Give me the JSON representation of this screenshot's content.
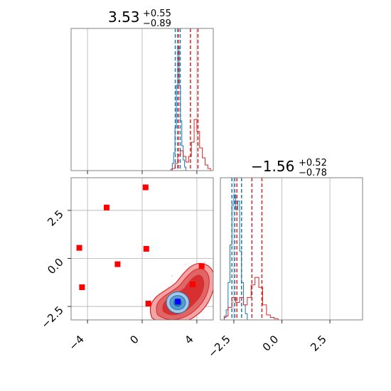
{
  "chart_data": [
    {
      "type": "histogram",
      "panel": "marginal-x",
      "title": {
        "value": "3.53",
        "upper": "+0.55",
        "lower": "−0.89"
      },
      "xlim": [
        -5.2,
        5.2
      ],
      "bins": [
        -5.2,
        -5.0,
        -4.8,
        -4.6,
        -4.4,
        -4.2,
        -4.0,
        -3.8,
        -3.6,
        -3.4,
        -3.2,
        -3.0,
        -2.8,
        -2.6,
        -2.4,
        -2.2,
        -2.0,
        -1.8,
        -1.6,
        -1.4,
        -1.2,
        -1.0,
        -0.8,
        -0.6,
        -0.4,
        -0.2,
        0.0,
        0.2,
        0.4,
        0.6,
        0.8,
        1.0,
        1.2,
        1.4,
        1.6,
        1.8,
        2.0,
        2.2,
        2.4,
        2.6,
        2.8,
        3.0,
        3.2,
        3.4,
        3.6,
        3.8,
        4.0,
        4.2,
        4.4,
        4.6,
        4.8,
        5.0,
        5.2
      ],
      "series": [
        {
          "color": "#1f77b4",
          "steps": [
            [
              2.0,
              0
            ],
            [
              2.1,
              2
            ],
            [
              2.2,
              10
            ],
            [
              2.3,
              25
            ],
            [
              2.4,
              60
            ],
            [
              2.5,
              120
            ],
            [
              2.6,
              175
            ],
            [
              2.7,
              120
            ],
            [
              2.8,
              70
            ],
            [
              2.9,
              35
            ],
            [
              3.0,
              15
            ],
            [
              3.1,
              5
            ],
            [
              3.2,
              0
            ]
          ],
          "quantiles": [
            2.42,
            2.6,
            2.78
          ]
        },
        {
          "color": "#d62728",
          "steps": [
            [
              2.0,
              0
            ],
            [
              2.2,
              3
            ],
            [
              2.4,
              10
            ],
            [
              2.6,
              22
            ],
            [
              2.8,
              28
            ],
            [
              3.0,
              20
            ],
            [
              3.2,
              12
            ],
            [
              3.4,
              20
            ],
            [
              3.6,
              40
            ],
            [
              3.8,
              72
            ],
            [
              4.0,
              55
            ],
            [
              4.2,
              32
            ],
            [
              4.4,
              18
            ],
            [
              4.6,
              8
            ],
            [
              4.8,
              3
            ],
            [
              5.0,
              0
            ]
          ],
          "quantiles": [
            2.64,
            3.53,
            4.08
          ]
        }
      ],
      "vline_color": "#d62728",
      "vline_x": 2.64
    },
    {
      "type": "scatter",
      "panel": "joint",
      "xlim": [
        -5.2,
        5.2
      ],
      "ylim": [
        -3.2,
        4.2
      ],
      "xticks": [
        "−4",
        "0",
        "4"
      ],
      "yticks": [
        "−2.5",
        "0.0",
        "2.5"
      ],
      "xtick_values": [
        -4,
        0,
        4
      ],
      "ytick_values": [
        -2.5,
        0.0,
        2.5
      ],
      "grid": true,
      "red_points": [
        [
          0.25,
          3.7
        ],
        [
          -2.6,
          2.65
        ],
        [
          -4.6,
          0.55
        ],
        [
          0.3,
          0.5
        ],
        [
          -1.8,
          -0.3
        ],
        [
          -4.4,
          -1.5
        ],
        [
          0.45,
          -2.35
        ],
        [
          4.35,
          -0.4
        ],
        [
          3.7,
          -1.35
        ]
      ],
      "blue_point": [
        2.6,
        -2.25
      ],
      "blue_contour_center": [
        2.6,
        -2.3
      ],
      "red_contour_center": [
        3.3,
        -1.6
      ]
    },
    {
      "type": "histogram",
      "panel": "marginal-y",
      "title": {
        "value": "−1.56",
        "upper": "+0.52",
        "lower": "−0.78"
      },
      "xlim": [
        -3.2,
        4.2
      ],
      "xticks": [
        "−2.5",
        "0.0",
        "2.5"
      ],
      "xtick_values": [
        -2.5,
        0.0,
        2.5
      ],
      "series": [
        {
          "color": "#1f77b4",
          "steps": [
            [
              -3.2,
              0
            ],
            [
              -3.0,
              2
            ],
            [
              -2.9,
              8
            ],
            [
              -2.8,
              30
            ],
            [
              -2.7,
              60
            ],
            [
              -2.6,
              92
            ],
            [
              -2.5,
              100
            ],
            [
              -2.4,
              88
            ],
            [
              -2.3,
              95
            ],
            [
              -2.2,
              55
            ],
            [
              -2.1,
              30
            ],
            [
              -2.0,
              12
            ],
            [
              -1.9,
              5
            ],
            [
              -1.8,
              0
            ]
          ],
          "quantiles": [
            -2.6,
            -2.45,
            -2.1
          ]
        },
        {
          "color": "#d62728",
          "steps": [
            [
              -3.2,
              0
            ],
            [
              -3.0,
              3
            ],
            [
              -2.8,
              10
            ],
            [
              -2.6,
              18
            ],
            [
              -2.4,
              14
            ],
            [
              -2.2,
              18
            ],
            [
              -2.0,
              12
            ],
            [
              -1.8,
              18
            ],
            [
              -1.6,
              28
            ],
            [
              -1.4,
              34
            ],
            [
              -1.2,
              26
            ],
            [
              -1.0,
              12
            ],
            [
              -0.8,
              4
            ],
            [
              -0.6,
              2
            ],
            [
              -0.4,
              1
            ],
            [
              -0.2,
              0
            ]
          ],
          "quantiles": [
            -2.34,
            -1.56,
            -1.04
          ]
        }
      ],
      "vline_color": "#d62728",
      "vline_x": -2.5
    }
  ]
}
